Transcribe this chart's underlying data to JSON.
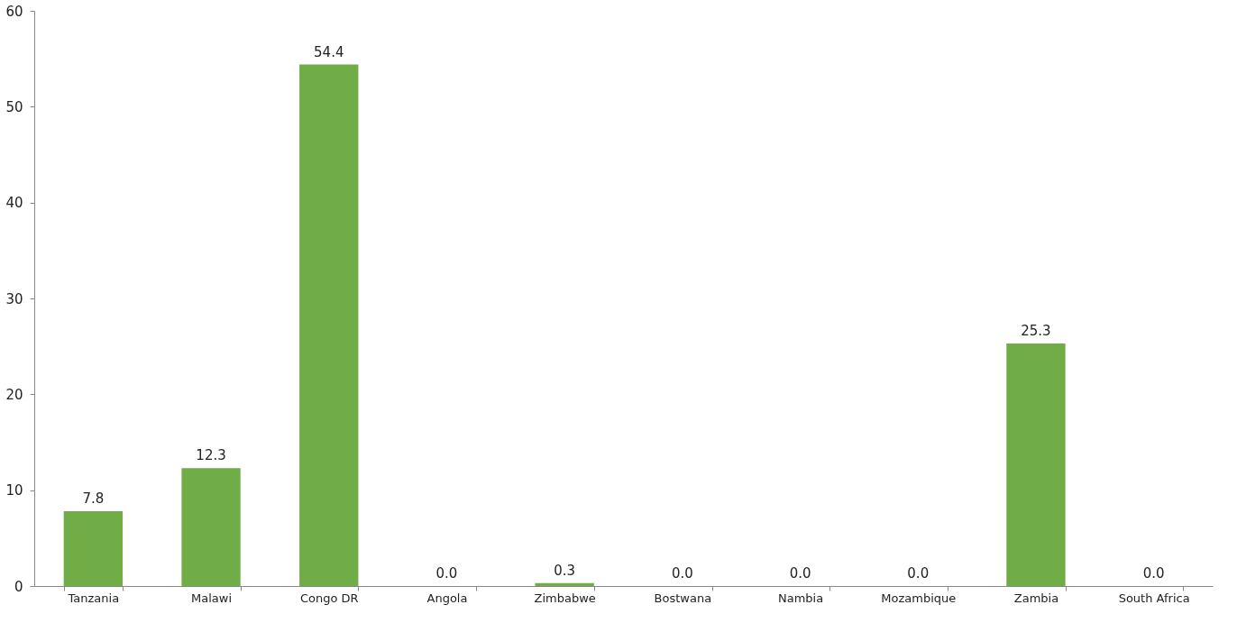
{
  "chart_data": {
    "type": "bar",
    "categories": [
      "Tanzania",
      "Malawi",
      "Congo DR",
      "Angola",
      "Zimbabwe",
      "Bostwana",
      "Nambia",
      "Mozambique",
      "Zambia",
      "South Africa"
    ],
    "values": [
      7.8,
      12.3,
      54.4,
      0.0,
      0.3,
      0.0,
      0.0,
      0.0,
      25.3,
      0.0
    ],
    "value_labels": [
      "7.8",
      "12.3",
      "54.4",
      "0.0",
      "0.3",
      "0.0",
      "0.0",
      "0.0",
      "25.3",
      "0.0"
    ],
    "color": "#70ad47",
    "ylim": [
      0,
      60
    ],
    "yticks": [
      0,
      10,
      20,
      30,
      40,
      50,
      60
    ],
    "grid": false
  }
}
